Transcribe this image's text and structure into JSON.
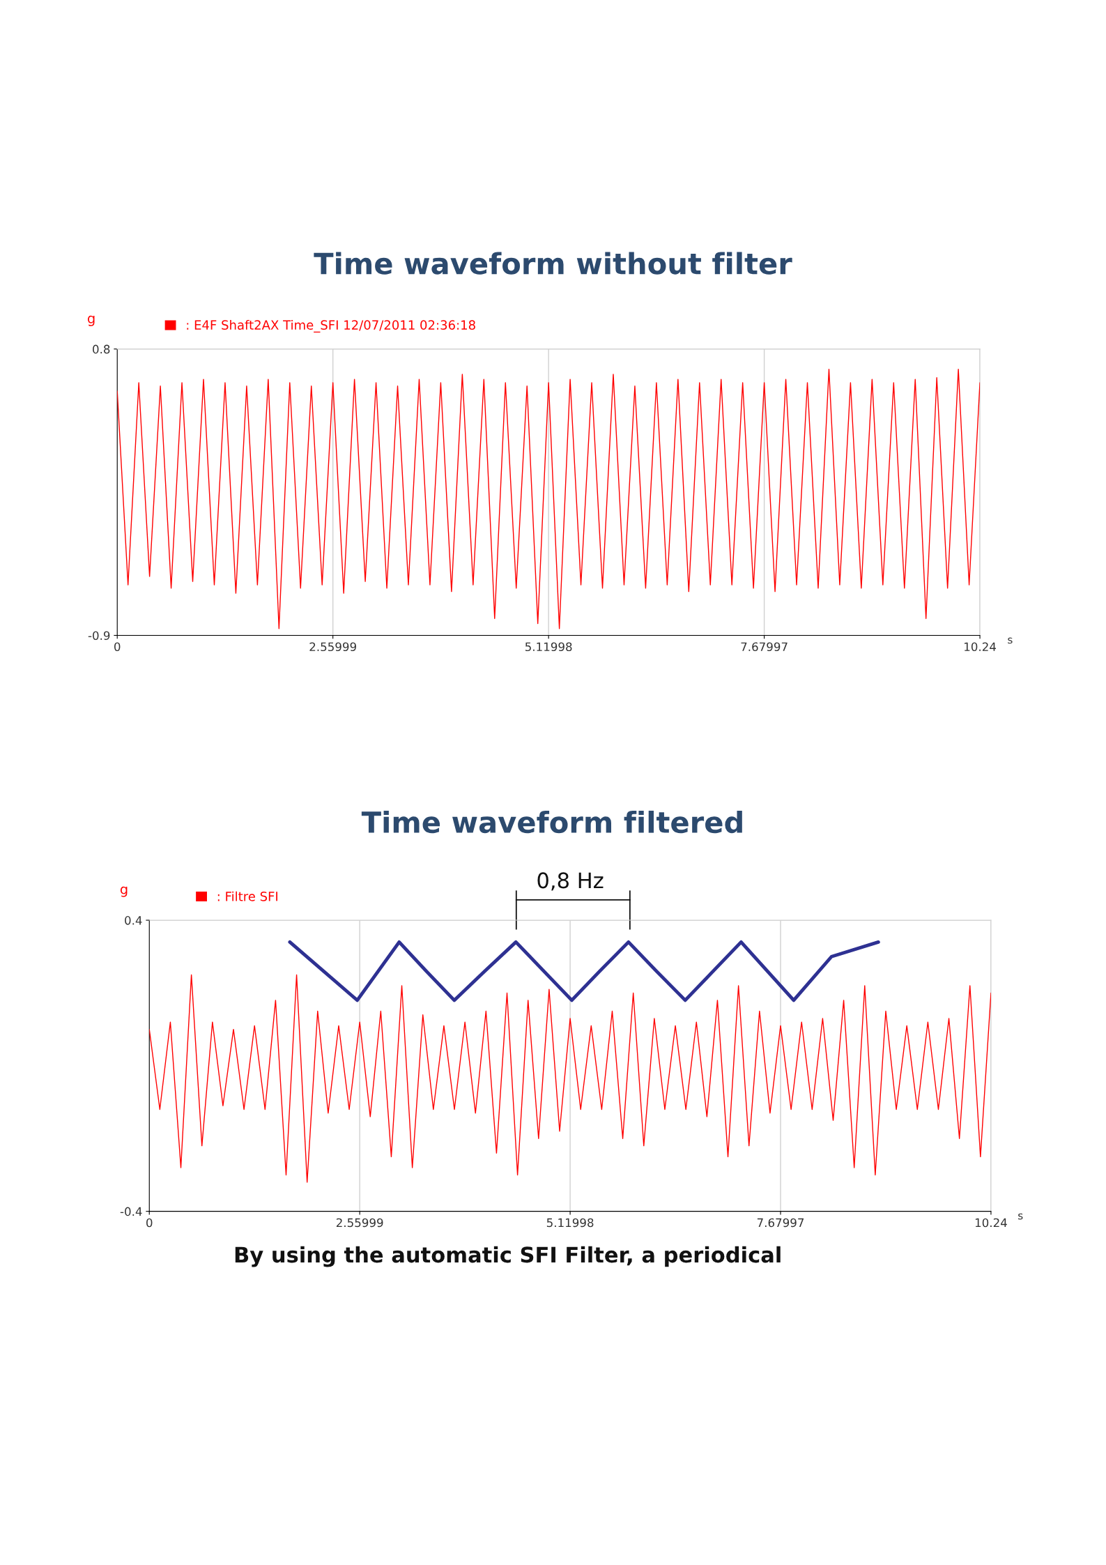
{
  "chart_data": [
    {
      "type": "line",
      "title": "Time waveform without filter",
      "xlabel": "s",
      "ylabel": "g",
      "legend": "top left",
      "grid": true,
      "xlim": [
        0,
        10.24
      ],
      "xticks": [
        0,
        2.55999,
        5.11998,
        7.67997,
        10.24
      ],
      "ylim": [
        -0.9,
        0.8
      ],
      "yticks": [
        -0.9,
        0.8
      ],
      "series": [
        {
          "name": ": E4F Shaft2AX Time_SFI 12/07/2011 02:36:18",
          "color": "#ff0000",
          "x": [
            0,
            0.128,
            0.256,
            0.384,
            0.512,
            0.64,
            0.768,
            0.896,
            1.024,
            1.152,
            1.28,
            1.408,
            1.536,
            1.664,
            1.792,
            1.92,
            2.048,
            2.176,
            2.304,
            2.432,
            2.56,
            2.688,
            2.816,
            2.944,
            3.072,
            3.2,
            3.328,
            3.456,
            3.584,
            3.712,
            3.84,
            3.968,
            4.096,
            4.224,
            4.352,
            4.48,
            4.608,
            4.736,
            4.864,
            4.992,
            5.12,
            5.248,
            5.376,
            5.504,
            5.632,
            5.76,
            5.888,
            6.016,
            6.144,
            6.272,
            6.4,
            6.528,
            6.656,
            6.784,
            6.912,
            7.04,
            7.168,
            7.296,
            7.424,
            7.552,
            7.68,
            7.808,
            7.936,
            8.064,
            8.192,
            8.32,
            8.448,
            8.576,
            8.704,
            8.832,
            8.96,
            9.088,
            9.216,
            9.344,
            9.472,
            9.6,
            9.728,
            9.856,
            9.984,
            10.112,
            10.24
          ],
          "values": [
            0.55,
            -0.6,
            0.6,
            -0.55,
            0.58,
            -0.62,
            0.6,
            -0.58,
            0.62,
            -0.6,
            0.6,
            -0.65,
            0.58,
            -0.6,
            0.62,
            -0.86,
            0.6,
            -0.62,
            0.58,
            -0.6,
            0.6,
            -0.65,
            0.62,
            -0.58,
            0.6,
            -0.62,
            0.58,
            -0.6,
            0.62,
            -0.6,
            0.6,
            -0.64,
            0.65,
            -0.6,
            0.62,
            -0.8,
            0.6,
            -0.62,
            0.58,
            -0.83,
            0.6,
            -0.86,
            0.62,
            -0.6,
            0.6,
            -0.62,
            0.65,
            -0.6,
            0.58,
            -0.62,
            0.6,
            -0.6,
            0.62,
            -0.64,
            0.6,
            -0.6,
            0.62,
            -0.6,
            0.6,
            -0.62,
            0.6,
            -0.64,
            0.62,
            -0.6,
            0.6,
            -0.62,
            0.68,
            -0.6,
            0.6,
            -0.62,
            0.62,
            -0.6,
            0.6,
            -0.62,
            0.62,
            -0.8,
            0.63,
            -0.62,
            0.68,
            -0.6,
            0.6
          ]
        }
      ]
    },
    {
      "type": "line",
      "title": "Time waveform filtered",
      "xlabel": "s",
      "ylabel": "g",
      "legend": "top left",
      "grid": true,
      "xlim": [
        0,
        10.24
      ],
      "xticks": [
        0,
        2.55999,
        5.11998,
        7.67997,
        10.24
      ],
      "ylim": [
        -0.4,
        0.4
      ],
      "yticks": [
        -0.4,
        0.4
      ],
      "annotations": [
        "0,8 Hz",
        "By using the automatic SFI Filter, a periodical"
      ],
      "series": [
        {
          "name": ": Filtre SFI",
          "color": "#ff0000",
          "x": [
            0,
            0.128,
            0.256,
            0.384,
            0.512,
            0.64,
            0.768,
            0.896,
            1.024,
            1.152,
            1.28,
            1.408,
            1.536,
            1.664,
            1.792,
            1.92,
            2.048,
            2.176,
            2.304,
            2.432,
            2.56,
            2.688,
            2.816,
            2.944,
            3.072,
            3.2,
            3.328,
            3.456,
            3.584,
            3.712,
            3.84,
            3.968,
            4.096,
            4.224,
            4.352,
            4.48,
            4.608,
            4.736,
            4.864,
            4.992,
            5.12,
            5.248,
            5.376,
            5.504,
            5.632,
            5.76,
            5.888,
            6.016,
            6.144,
            6.272,
            6.4,
            6.528,
            6.656,
            6.784,
            6.912,
            7.04,
            7.168,
            7.296,
            7.424,
            7.552,
            7.68,
            7.808,
            7.936,
            8.064,
            8.192,
            8.32,
            8.448,
            8.576,
            8.704,
            8.832,
            8.96,
            9.088,
            9.216,
            9.344,
            9.472,
            9.6,
            9.728,
            9.856,
            9.984,
            10.112,
            10.24
          ],
          "values": [
            0.1,
            -0.12,
            0.12,
            -0.28,
            0.25,
            -0.22,
            0.12,
            -0.11,
            0.1,
            -0.12,
            0.11,
            -0.12,
            0.18,
            -0.3,
            0.25,
            -0.32,
            0.15,
            -0.13,
            0.11,
            -0.12,
            0.12,
            -0.14,
            0.15,
            -0.25,
            0.22,
            -0.28,
            0.14,
            -0.12,
            0.11,
            -0.12,
            0.12,
            -0.13,
            0.15,
            -0.24,
            0.2,
            -0.3,
            0.18,
            -0.2,
            0.21,
            -0.18,
            0.13,
            -0.12,
            0.11,
            -0.12,
            0.15,
            -0.2,
            0.2,
            -0.22,
            0.13,
            -0.12,
            0.11,
            -0.12,
            0.12,
            -0.14,
            0.18,
            -0.25,
            0.22,
            -0.22,
            0.15,
            -0.13,
            0.11,
            -0.12,
            0.12,
            -0.12,
            0.13,
            -0.15,
            0.18,
            -0.28,
            0.22,
            -0.3,
            0.15,
            -0.12,
            0.11,
            -0.12,
            0.12,
            -0.12,
            0.13,
            -0.2,
            0.22,
            -0.25,
            0.2
          ]
        },
        {
          "color": "#2e3192",
          "x": [
            1.71,
            2.12,
            2.53,
            3.04,
            3.37,
            3.71,
            4.08,
            4.46,
            4.8,
            5.14,
            5.48,
            5.83,
            6.17,
            6.52,
            6.86,
            7.2,
            7.52,
            7.84,
            8.3,
            8.87
          ],
          "values": [
            0.34,
            0.26,
            0.18,
            0.34,
            0.26,
            0.18,
            0.26,
            0.34,
            0.26,
            0.18,
            0.26,
            0.34,
            0.26,
            0.18,
            0.26,
            0.34,
            0.26,
            0.18,
            0.3,
            0.34
          ]
        }
      ]
    }
  ]
}
